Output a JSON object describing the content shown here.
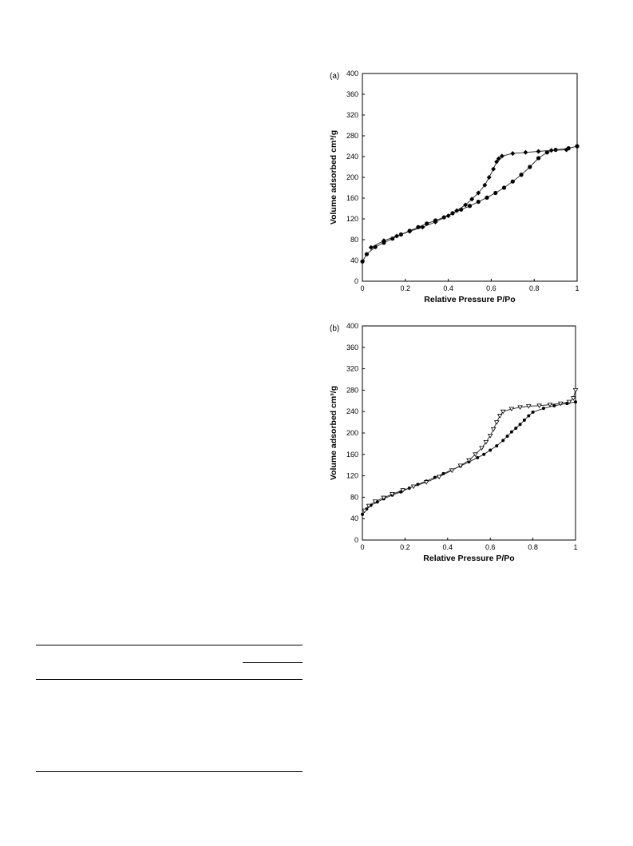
{
  "chart_data": [
    {
      "type": "line",
      "panel_label": "(a)",
      "xlabel": "Relative Pressure P/Po",
      "ylabel": "Volume adsorbed cm³/g",
      "xlim": [
        0,
        1
      ],
      "ylim": [
        0,
        400
      ],
      "x_ticks": [
        "0",
        "0.2",
        "0.4",
        "0.6",
        "0.8",
        "1"
      ],
      "y_ticks": [
        "0",
        "40",
        "80",
        "120",
        "160",
        "200",
        "240",
        "280",
        "320",
        "360",
        "400"
      ],
      "grid": false,
      "series": [
        {
          "marker": "circle",
          "x": [
            0.0,
            0.02,
            0.06,
            0.1,
            0.14,
            0.18,
            0.22,
            0.26,
            0.3,
            0.34,
            0.38,
            0.42,
            0.46,
            0.5,
            0.54,
            0.58,
            0.62,
            0.66,
            0.7,
            0.74,
            0.78,
            0.82,
            0.86,
            0.9,
            0.96,
            1.0
          ],
          "y": [
            38,
            52,
            66,
            74,
            82,
            90,
            97,
            104,
            111,
            117,
            123,
            131,
            138,
            145,
            153,
            161,
            170,
            180,
            192,
            205,
            220,
            237,
            248,
            253,
            256,
            260
          ]
        },
        {
          "marker": "diamond",
          "x": [
            0.04,
            0.1,
            0.16,
            0.22,
            0.28,
            0.34,
            0.4,
            0.44,
            0.48,
            0.51,
            0.54,
            0.57,
            0.59,
            0.61,
            0.625,
            0.635,
            0.65,
            0.7,
            0.76,
            0.82,
            0.88,
            0.95
          ],
          "y": [
            65,
            78,
            87,
            96,
            104,
            114,
            126,
            136,
            147,
            158,
            170,
            185,
            200,
            216,
            230,
            236,
            241,
            246,
            248,
            250,
            252,
            253
          ]
        }
      ]
    },
    {
      "type": "line",
      "panel_label": "(b)",
      "xlabel": "Relative Pressure P/Po",
      "ylabel": "Volume adsorbed cm³/g",
      "xlim": [
        0,
        1
      ],
      "ylim": [
        0,
        400
      ],
      "x_ticks": [
        "0",
        "0.2",
        "0.4",
        "0.6",
        "0.8",
        "1"
      ],
      "y_ticks": [
        "0",
        "40",
        "80",
        "120",
        "160",
        "200",
        "240",
        "280",
        "320",
        "360",
        "400"
      ],
      "grid": false,
      "series": [
        {
          "marker": "filled-circle",
          "x": [
            0.0,
            0.02,
            0.04,
            0.07,
            0.1,
            0.14,
            0.18,
            0.22,
            0.26,
            0.3,
            0.34,
            0.38,
            0.42,
            0.46,
            0.5,
            0.54,
            0.57,
            0.6,
            0.63,
            0.66,
            0.68,
            0.7,
            0.72,
            0.74,
            0.76,
            0.78,
            0.8,
            0.85,
            0.9,
            0.96,
            1.0
          ],
          "y": [
            48,
            58,
            65,
            71,
            77,
            84,
            90,
            97,
            104,
            110,
            117,
            124,
            131,
            138,
            146,
            154,
            160,
            168,
            176,
            186,
            194,
            202,
            209,
            216,
            224,
            232,
            239,
            246,
            251,
            255,
            258
          ]
        },
        {
          "marker": "triangle-down",
          "x": [
            0.01,
            0.03,
            0.06,
            0.1,
            0.14,
            0.19,
            0.24,
            0.3,
            0.36,
            0.42,
            0.46,
            0.5,
            0.53,
            0.56,
            0.58,
            0.6,
            0.615,
            0.63,
            0.645,
            0.66,
            0.7,
            0.74,
            0.78,
            0.83,
            0.88,
            0.93,
            0.97,
            0.99,
            1.0
          ],
          "y": [
            55,
            64,
            72,
            79,
            86,
            93,
            100,
            108,
            118,
            130,
            139,
            149,
            160,
            172,
            183,
            195,
            207,
            220,
            232,
            240,
            245,
            248,
            250,
            251,
            253,
            255,
            258,
            265,
            280
          ]
        }
      ]
    }
  ]
}
